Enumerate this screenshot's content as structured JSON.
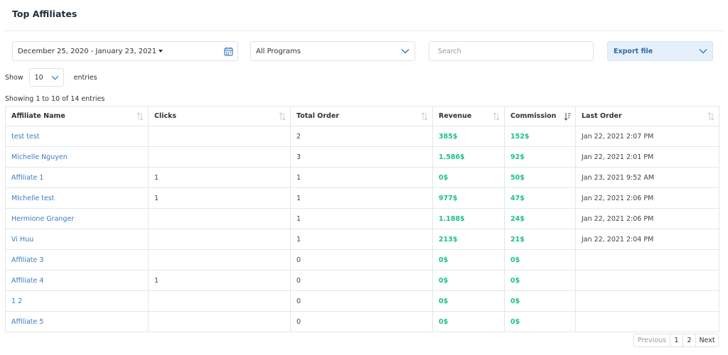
{
  "page": {
    "title": "Top Affiliates"
  },
  "filters": {
    "date_range": "December 25, 2020 - January 23, 2021",
    "programs": "All Programs",
    "search_placeholder": "Search",
    "export_label": "Export file"
  },
  "length": {
    "show_label": "Show",
    "value": "10",
    "entries_label": "entries"
  },
  "info": "Showing 1 to 10 of 14 entries",
  "table": {
    "headers": [
      "Affiliate Name",
      "Clicks",
      "Total Order",
      "Revenue",
      "Commission",
      "Last Order"
    ],
    "rows": [
      [
        "test test",
        "",
        "2",
        "385$",
        "152$",
        "Jan 22, 2021 2:07 PM"
      ],
      [
        "Michelle Nguyen",
        "",
        "3",
        "1.586$",
        "92$",
        "Jan 22, 2021 2:01 PM"
      ],
      [
        "Affiliate 1",
        "1",
        "1",
        "0$",
        "50$",
        "Jan 23, 2021 9:52 AM"
      ],
      [
        "MIchelle test",
        "1",
        "1",
        "977$",
        "47$",
        "Jan 22, 2021 2:06 PM"
      ],
      [
        "Hermione Granger",
        "",
        "1",
        "1.188$",
        "24$",
        "Jan 22, 2021 2:06 PM"
      ],
      [
        "Vi Huu",
        "",
        "1",
        "213$",
        "21$",
        "Jan 22, 2021 2:04 PM"
      ],
      [
        "Affiliate 3",
        "",
        "0",
        "0$",
        "0$",
        ""
      ],
      [
        "Affiliate 4",
        "1",
        "0",
        "0$",
        "0$",
        ""
      ],
      [
        "1 2",
        "",
        "0",
        "0$",
        "0$",
        ""
      ],
      [
        "Affiliate 5",
        "",
        "0",
        "0$",
        "0$",
        ""
      ]
    ]
  },
  "pagination": {
    "previous": "Previous",
    "pages": [
      "1",
      "2"
    ],
    "next": "Next"
  },
  "colors": {
    "link": "#3a7cc2",
    "money": "#1fbf8f",
    "export_bg": "#e6f0fa"
  }
}
